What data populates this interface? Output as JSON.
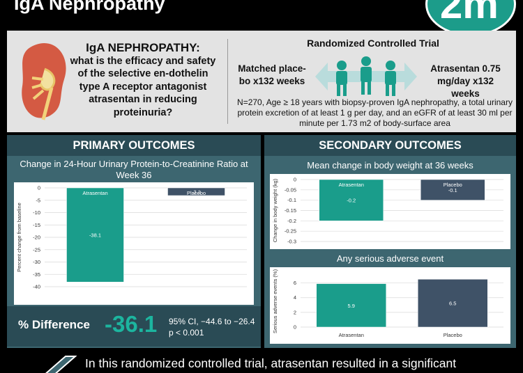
{
  "header": {
    "title": "IgA Nephropathy",
    "logo_text": "2m"
  },
  "question_panel": {
    "title": "IgA NEPHROPATHY:",
    "question": "what is the efficacy and safety of the selective en-dothelin type A receptor antagonist atrasentan in reducing proteinuria?",
    "rct_title": "Randomized Controlled Trial",
    "arm_left": "Matched place-bo x132 weeks",
    "arm_right": "Atrasentan 0.75 mg/day x132 weeks",
    "population": "N=270, Age ≥ 18 years with biopsy-proven IgA nephropathy, a total urinary protein excretion of at least 1 g per day, and an eGFR of at least 30 ml per minute per 1.73 m2 of body-surface area"
  },
  "primary": {
    "heading": "PRIMARY OUTCOMES",
    "difference_label": "% Difference",
    "difference_value": "-36.1",
    "ci": "95% CI, −44.6 to −26.4",
    "p_value": "p < 0.001"
  },
  "secondary": {
    "heading": "SECONDARY OUTCOMES"
  },
  "conclusion": {
    "text": "In this randomized controlled trial, atrasentan resulted in a significant"
  },
  "colors": {
    "teal": "#1a9d8b",
    "slate": "#3f5267",
    "panel": "#3d6670",
    "panel_dark": "#2a4b55"
  },
  "chart_data": [
    {
      "type": "bar",
      "title": "Change in 24-Hour Urinary Protein-to-Creatinine Ratio at Week 36",
      "ylabel": "Percent change from baseline",
      "categories": [
        "Atrasentan",
        "Placebo"
      ],
      "values": [
        -38.1,
        -3.1
      ],
      "value_labels": [
        "-38.1",
        "-3.1"
      ],
      "ylim": [
        -40,
        0
      ],
      "yticks": [
        "0",
        "-5",
        "-10",
        "-15",
        "-20",
        "-25",
        "-30",
        "-35",
        "-40"
      ],
      "grid": true
    },
    {
      "type": "bar",
      "title": "Mean change in body weight at 36 weeks",
      "ylabel": "Change in body weight (kg)",
      "categories": [
        "Atrasentan",
        "Placebo"
      ],
      "values": [
        -0.2,
        -0.1
      ],
      "value_labels": [
        "-0.2",
        "-0.1"
      ],
      "ylim": [
        -0.3,
        0
      ],
      "yticks": [
        "0",
        "-0.05",
        "-0.1",
        "-0.15",
        "-0.2",
        "-0.25",
        "-0.3"
      ],
      "grid": true
    },
    {
      "type": "bar",
      "title": "Any serious adverse event",
      "ylabel": "Serious adverse events (%)",
      "categories": [
        "Atrasentan",
        "Placebo"
      ],
      "values": [
        5.9,
        6.5
      ],
      "value_labels": [
        "5.9",
        "6.5"
      ],
      "ylim": [
        0,
        7
      ],
      "yticks": [
        "0",
        "2",
        "4",
        "6"
      ],
      "grid": true
    }
  ]
}
